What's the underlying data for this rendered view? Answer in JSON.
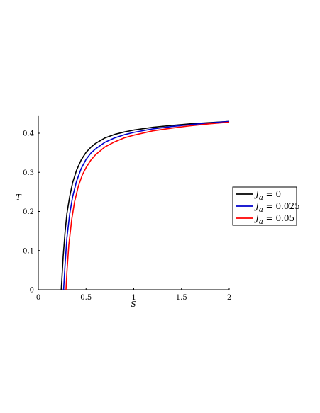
{
  "chart_data": {
    "type": "line",
    "title": "",
    "xlabel": "S",
    "ylabel": "T",
    "xlim": [
      0,
      2
    ],
    "ylim": [
      0,
      0.44
    ],
    "x_ticks": [
      0,
      0.5,
      1,
      1.5,
      2
    ],
    "x_tick_labels": [
      "0",
      "0.5",
      "1",
      "1.5",
      "2"
    ],
    "y_ticks": [
      0,
      0.1,
      0.2,
      0.3,
      0.4
    ],
    "y_tick_labels": [
      "0",
      "0.1",
      "0.2",
      "0.3",
      "0.4"
    ],
    "grid": false,
    "legend_position": "right",
    "series": [
      {
        "name": "J_a = 0",
        "legend": {
          "symbol": "J",
          "sub": "a",
          "rest": " = 0"
        },
        "color": "#000000",
        "x": [
          0.24,
          0.26,
          0.28,
          0.3,
          0.33,
          0.36,
          0.4,
          0.45,
          0.5,
          0.55,
          0.6,
          0.7,
          0.8,
          0.9,
          1.0,
          1.2,
          1.4,
          1.6,
          1.8,
          2.0
        ],
        "y": [
          0.0,
          0.085,
          0.148,
          0.195,
          0.24,
          0.274,
          0.305,
          0.332,
          0.351,
          0.364,
          0.374,
          0.388,
          0.397,
          0.403,
          0.408,
          0.415,
          0.42,
          0.424,
          0.427,
          0.43
        ]
      },
      {
        "name": "J_a = 0.025",
        "legend": {
          "symbol": "J",
          "sub": "a",
          "rest": " = 0.025"
        },
        "color": "#0000cc",
        "x": [
          0.265,
          0.28,
          0.3,
          0.33,
          0.36,
          0.4,
          0.45,
          0.5,
          0.55,
          0.6,
          0.7,
          0.8,
          0.9,
          1.0,
          1.2,
          1.4,
          1.6,
          1.8,
          2.0
        ],
        "y": [
          0.0,
          0.065,
          0.133,
          0.196,
          0.238,
          0.277,
          0.31,
          0.333,
          0.349,
          0.36,
          0.377,
          0.388,
          0.396,
          0.402,
          0.411,
          0.417,
          0.422,
          0.426,
          0.43
        ]
      },
      {
        "name": "J_a = 0.05",
        "legend": {
          "symbol": "J",
          "sub": "a",
          "rest": " = 0.05"
        },
        "color": "#ff0000",
        "x": [
          0.29,
          0.3,
          0.32,
          0.35,
          0.38,
          0.42,
          0.46,
          0.5,
          0.55,
          0.6,
          0.7,
          0.8,
          0.9,
          1.0,
          1.2,
          1.4,
          1.6,
          1.8,
          2.0
        ],
        "y": [
          0.0,
          0.045,
          0.115,
          0.18,
          0.225,
          0.265,
          0.293,
          0.312,
          0.331,
          0.345,
          0.365,
          0.378,
          0.388,
          0.395,
          0.406,
          0.413,
          0.419,
          0.424,
          0.428
        ]
      }
    ]
  }
}
